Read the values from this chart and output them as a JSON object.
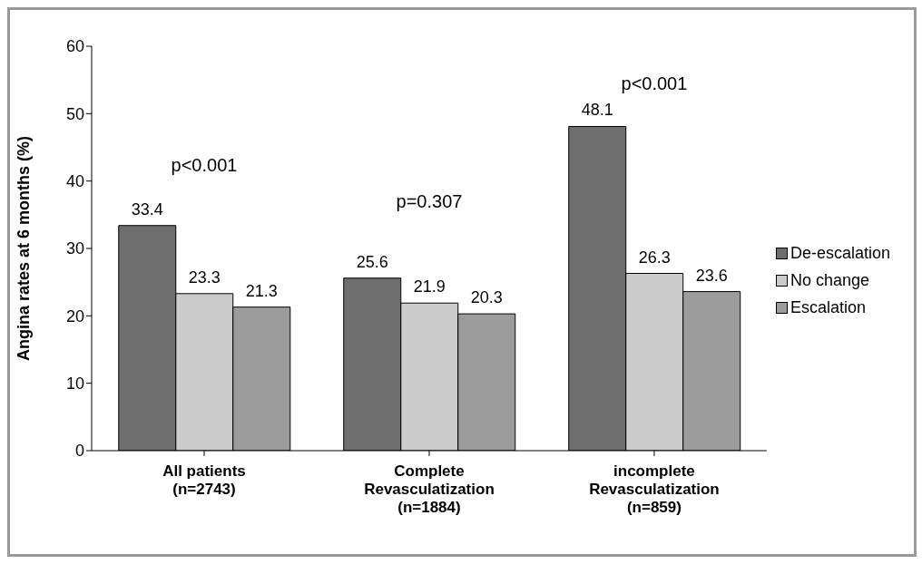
{
  "chart_data": {
    "type": "bar",
    "ylabel": "Angina rates at 6 months (%)",
    "categories": [
      "All patients\n(n=2743)",
      "Complete\nRevasculatization\n(n=1884)",
      "incomplete\nRevasculatization\n(n=859)"
    ],
    "series": [
      {
        "name": "De-escalation",
        "color": "#6e6e6e",
        "values": [
          33.4,
          25.6,
          48.1
        ]
      },
      {
        "name": "No change",
        "color": "#cbcbcb",
        "values": [
          23.3,
          21.9,
          26.3
        ]
      },
      {
        "name": "Escalation",
        "color": "#9c9c9c",
        "values": [
          21.3,
          20.3,
          23.6
        ]
      }
    ],
    "ylim": [
      0,
      60
    ],
    "yticks": [
      0,
      10,
      20,
      30,
      40,
      50,
      60
    ],
    "grid": false,
    "legend": "right",
    "data_labels": true,
    "annotations": [
      "p<0.001",
      "p=0.307",
      "p<0.001"
    ]
  }
}
